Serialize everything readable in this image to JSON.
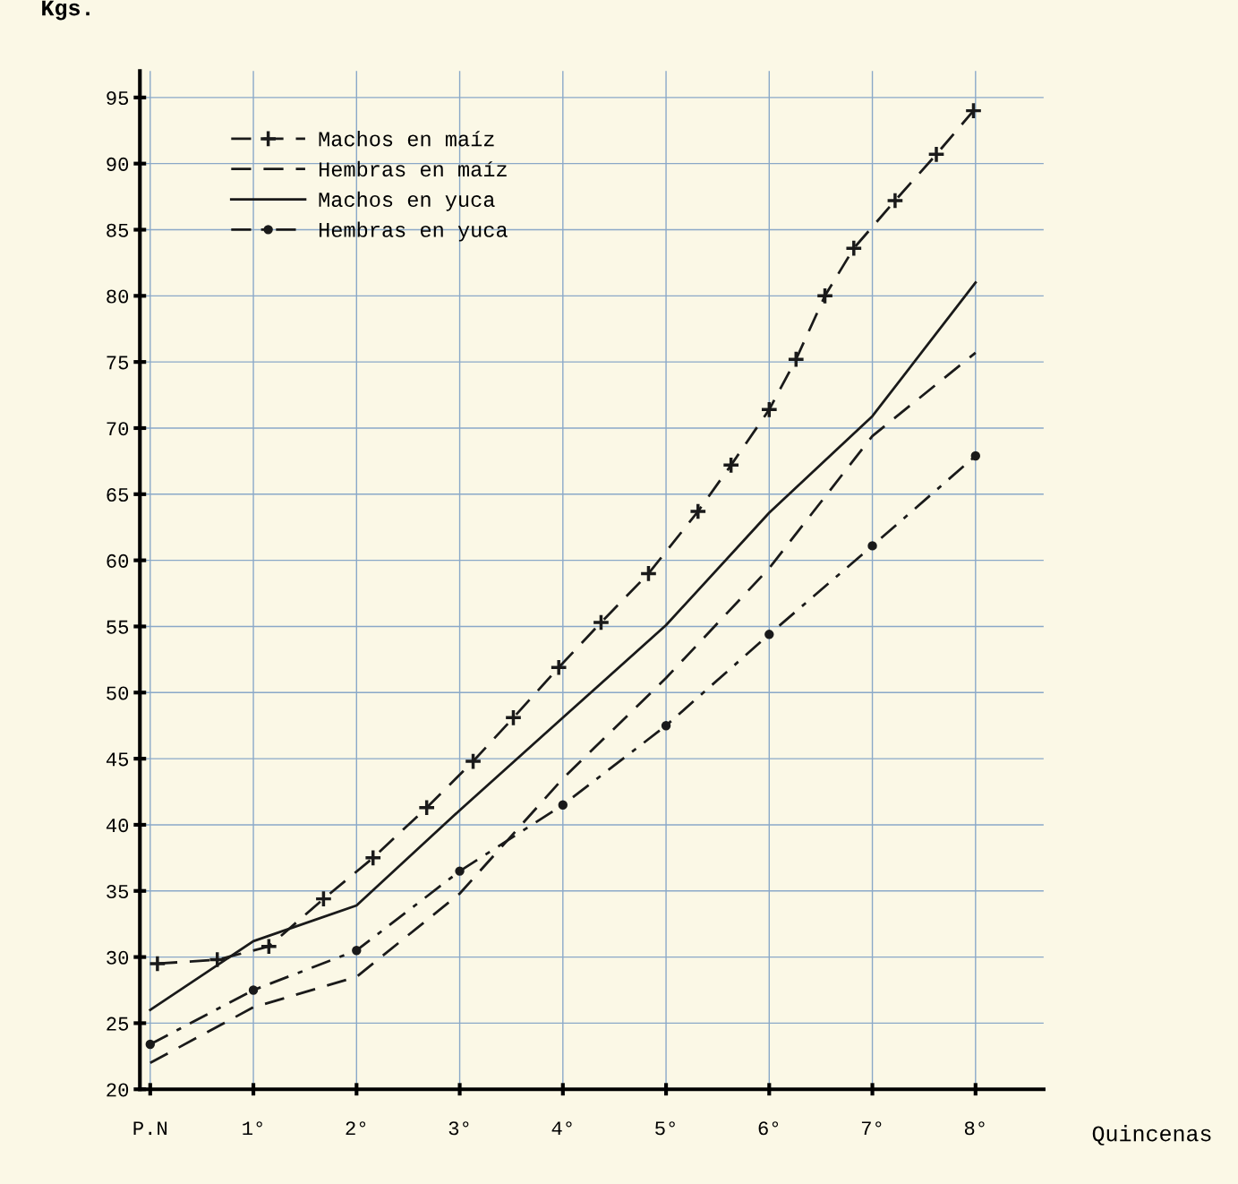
{
  "chart_data": {
    "type": "line",
    "xlabel": "Quincenas",
    "ylabel": "Kgs.",
    "xlim": [
      -0.1,
      8.66
    ],
    "ylim": [
      20,
      97
    ],
    "xticks": [
      {
        "value": 0,
        "label": "P.N"
      },
      {
        "value": 1,
        "label": "1°"
      },
      {
        "value": 2,
        "label": "2°"
      },
      {
        "value": 3,
        "label": "3°"
      },
      {
        "value": 4,
        "label": "4°"
      },
      {
        "value": 5,
        "label": "5°"
      },
      {
        "value": 6,
        "label": "6°"
      },
      {
        "value": 7,
        "label": "7°"
      },
      {
        "value": 8,
        "label": "8°"
      }
    ],
    "yticks": [
      20,
      25,
      30,
      35,
      40,
      45,
      50,
      55,
      60,
      65,
      70,
      75,
      80,
      85,
      90,
      95
    ],
    "grid": true,
    "legend": "top left",
    "series": [
      {
        "name": "Machos en maíz",
        "color": "#1a1a1a",
        "line_style": "dashed",
        "marker": "cross",
        "x": [
          0.07,
          0.65,
          1.15,
          1.68,
          2.16,
          2.68,
          3.13,
          3.52,
          3.96,
          4.37,
          4.83,
          5.31,
          5.63,
          6.0,
          6.26,
          6.54,
          6.82,
          7.22,
          7.62,
          7.98
        ],
        "values": [
          29.5,
          29.8,
          30.8,
          34.4,
          37.5,
          41.3,
          44.8,
          48.1,
          51.9,
          55.3,
          59.0,
          63.7,
          67.2,
          71.4,
          75.2,
          80.0,
          83.6,
          87.2,
          90.7,
          94.0
        ]
      },
      {
        "name": "Hembras en maíz",
        "color": "#1a1a1a",
        "line_style": "dashed",
        "marker": "none",
        "x": [
          0,
          1,
          2,
          3,
          4,
          5,
          6,
          7,
          8
        ],
        "values": [
          22.0,
          26.2,
          28.5,
          34.8,
          43.5,
          51.1,
          59.4,
          69.4,
          75.7
        ]
      },
      {
        "name": "Machos en yuca",
        "color": "#1a1a1a",
        "line_style": "solid",
        "marker": "none",
        "x": [
          0,
          1,
          2,
          3,
          4,
          5,
          6,
          7,
          8
        ],
        "values": [
          26.0,
          31.2,
          33.9,
          41.1,
          48.1,
          55.1,
          63.6,
          70.9,
          81.0
        ]
      },
      {
        "name": "Hembras en yuca",
        "color": "#1a1a1a",
        "line_style": "dashdot",
        "marker": "circle",
        "x": [
          0,
          1,
          2,
          3,
          4,
          5,
          6,
          7,
          8
        ],
        "values": [
          23.4,
          27.5,
          30.5,
          36.5,
          41.5,
          47.5,
          54.4,
          61.1,
          67.9
        ]
      }
    ]
  }
}
